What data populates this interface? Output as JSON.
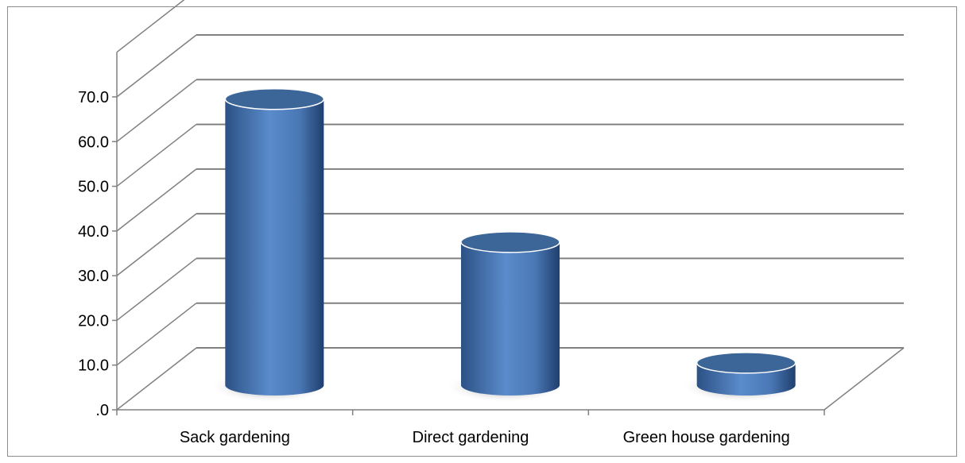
{
  "chart_data": {
    "type": "bar",
    "style": "3d-cylinder",
    "categories": [
      "Sack gardening",
      "Direct gardening",
      "Green house gardening"
    ],
    "values": [
      64.0,
      32.0,
      5.0
    ],
    "ylim": [
      0,
      70
    ],
    "y_ticks": [
      ".0",
      "10.0",
      "20.0",
      "30.0",
      "40.0",
      "50.0",
      "60.0",
      "70.0"
    ],
    "title": "",
    "xlabel": "",
    "ylabel": "",
    "grid": true,
    "legend": "none",
    "colors": {
      "bar_mid": "#5a8bcb",
      "bar_dark": "#2c5286",
      "bar_top": "#3d6698",
      "grid": "#808080",
      "shadow": "#7a7a7a"
    }
  }
}
